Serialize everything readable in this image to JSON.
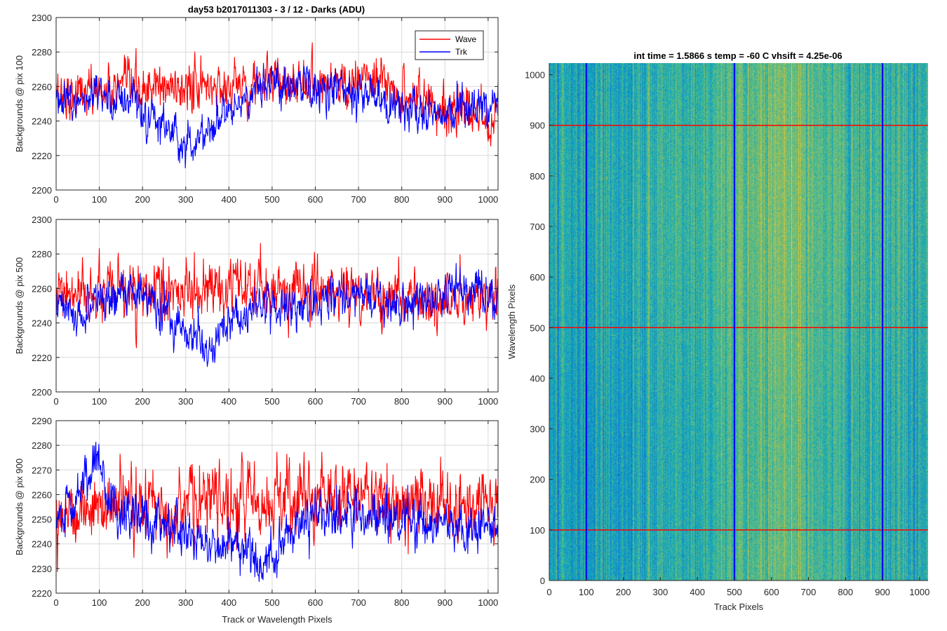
{
  "figure_title": "day53 b2017011303 - 3 / 12 - Darks (ADU)",
  "heatmap_title": "int time = 1.5866 s    temp = -60 C    vhsift = 4.25e-06",
  "colors": {
    "wave": "#ff0000",
    "trk": "#0000ff",
    "grid": "#d9d9d9",
    "axis": "#262626"
  },
  "chart_data": [
    {
      "type": "line",
      "ylabel": "Backgrounds @ pix 100",
      "xlabel": "",
      "xlim": [
        0,
        1023
      ],
      "ylim": [
        2200,
        2300
      ],
      "xticks": [
        0,
        100,
        200,
        300,
        400,
        500,
        600,
        700,
        800,
        900,
        1000
      ],
      "yticks": [
        2200,
        2220,
        2240,
        2260,
        2280,
        2300
      ],
      "grid": true,
      "legend": {
        "placement": "top-right",
        "entries": [
          "Wave",
          "Trk"
        ]
      },
      "series": [
        {
          "name": "Wave",
          "color": "#ff0000",
          "base": 2256,
          "noise": 7,
          "features": [
            [
              700,
              2264
            ],
            [
              1010,
              2240
            ]
          ]
        },
        {
          "name": "Trk",
          "color": "#0000ff",
          "base": 2250,
          "noise": 6,
          "features": [
            [
              80,
              2253
            ],
            [
              150,
              2255
            ],
            [
              300,
              2226
            ],
            [
              490,
              2262
            ],
            [
              700,
              2258
            ],
            [
              830,
              2244
            ],
            [
              950,
              2248
            ]
          ]
        }
      ]
    },
    {
      "type": "line",
      "ylabel": "Backgrounds @ pix 500",
      "xlabel": "",
      "xlim": [
        0,
        1023
      ],
      "ylim": [
        2200,
        2300
      ],
      "xticks": [
        0,
        100,
        200,
        300,
        400,
        500,
        600,
        700,
        800,
        900,
        1000
      ],
      "yticks": [
        2200,
        2220,
        2240,
        2260,
        2280,
        2300
      ],
      "grid": true,
      "series": [
        {
          "name": "Wave",
          "color": "#ff0000",
          "base": 2255,
          "noise": 8,
          "features": [
            [
              600,
              2260
            ],
            [
              900,
              2252
            ]
          ]
        },
        {
          "name": "Trk",
          "color": "#0000ff",
          "base": 2253,
          "noise": 6,
          "features": [
            [
              60,
              2243
            ],
            [
              150,
              2262
            ],
            [
              230,
              2250
            ],
            [
              340,
              2226
            ],
            [
              470,
              2252
            ],
            [
              560,
              2246
            ],
            [
              660,
              2258
            ],
            [
              780,
              2248
            ],
            [
              980,
              2260
            ]
          ]
        }
      ]
    },
    {
      "type": "line",
      "ylabel": "Backgrounds @ pix 900",
      "xlabel": "Track or Wavelength Pixels",
      "xlim": [
        0,
        1023
      ],
      "ylim": [
        2220,
        2290
      ],
      "xticks": [
        0,
        100,
        200,
        300,
        400,
        500,
        600,
        700,
        800,
        900,
        1000
      ],
      "yticks": [
        2220,
        2230,
        2240,
        2250,
        2260,
        2270,
        2280,
        2290
      ],
      "grid": true,
      "series": [
        {
          "name": "Wave",
          "color": "#ff0000",
          "base": 2254,
          "noise": 7,
          "features": [
            [
              500,
              2258
            ],
            [
              700,
              2260
            ],
            [
              900,
              2256
            ]
          ]
        },
        {
          "name": "Trk",
          "color": "#0000ff",
          "base": 2250,
          "noise": 5,
          "features": [
            [
              40,
              2256
            ],
            [
              95,
              2276
            ],
            [
              130,
              2256
            ],
            [
              250,
              2246
            ],
            [
              500,
              2233
            ],
            [
              600,
              2253
            ],
            [
              800,
              2250
            ],
            [
              950,
              2246
            ]
          ]
        }
      ]
    },
    {
      "type": "heatmap",
      "title": "int time = 1.5866 s    temp = -60 C    vhsift = 4.25e-06",
      "xlabel": "Track Pixels",
      "ylabel": "Wavelength Pixels",
      "xlim": [
        0,
        1023
      ],
      "ylim": [
        0,
        1023
      ],
      "xticks": [
        0,
        100,
        200,
        300,
        400,
        500,
        600,
        700,
        800,
        900,
        1000
      ],
      "yticks": [
        0,
        100,
        200,
        300,
        400,
        500,
        600,
        700,
        800,
        900,
        1000
      ],
      "grid": false,
      "colormap": "parula",
      "marker_lines": {
        "vertical_track_pixels": [
          100,
          500,
          900
        ],
        "vertical_color": "#0000ff",
        "horizontal_wavelength_pixels": [
          100,
          500,
          900
        ],
        "horizontal_color": "#ff0000"
      }
    }
  ]
}
